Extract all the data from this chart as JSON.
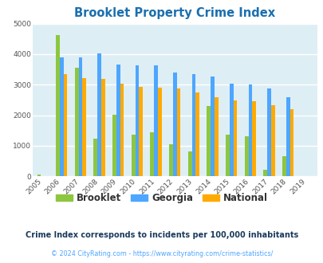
{
  "title": "Brooklet Property Crime Index",
  "years": [
    "2005",
    "2006",
    "2007",
    "2008",
    "2009",
    "2010",
    "2011",
    "2012",
    "2013",
    "2014",
    "2015",
    "2016",
    "2017",
    "2018",
    "2019"
  ],
  "brooklet": [
    50,
    4620,
    3550,
    1220,
    2020,
    1370,
    1450,
    1060,
    810,
    2300,
    1350,
    1320,
    220,
    650,
    0
  ],
  "georgia": [
    0,
    3900,
    3900,
    4020,
    3660,
    3640,
    3640,
    3400,
    3350,
    3280,
    3040,
    3000,
    2880,
    2580,
    0
  ],
  "national": [
    0,
    3340,
    3220,
    3200,
    3040,
    2940,
    2900,
    2870,
    2740,
    2600,
    2480,
    2450,
    2330,
    2190,
    0
  ],
  "brooklet_color": "#8dc63f",
  "georgia_color": "#4da6ff",
  "national_color": "#ffaa00",
  "bg_color": "#deeef5",
  "title_color": "#1a6faf",
  "ylim": [
    0,
    5000
  ],
  "yticks": [
    0,
    1000,
    2000,
    3000,
    4000,
    5000
  ],
  "subtitle": "Crime Index corresponds to incidents per 100,000 inhabitants",
  "footer": "© 2024 CityRating.com - https://www.cityrating.com/crime-statistics/",
  "subtitle_color": "#1a3a5c",
  "footer_color": "#4da6ff"
}
